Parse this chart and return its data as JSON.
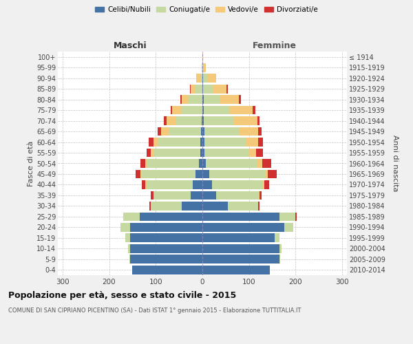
{
  "age_groups": [
    "0-4",
    "5-9",
    "10-14",
    "15-19",
    "20-24",
    "25-29",
    "30-34",
    "35-39",
    "40-44",
    "45-49",
    "50-54",
    "55-59",
    "60-64",
    "65-69",
    "70-74",
    "75-79",
    "80-84",
    "85-89",
    "90-94",
    "95-99",
    "100+"
  ],
  "birth_years": [
    "2010-2014",
    "2005-2009",
    "2000-2004",
    "1995-1999",
    "1990-1994",
    "1985-1989",
    "1980-1984",
    "1975-1979",
    "1970-1974",
    "1965-1969",
    "1960-1964",
    "1955-1959",
    "1950-1954",
    "1945-1949",
    "1940-1944",
    "1935-1939",
    "1930-1934",
    "1925-1929",
    "1920-1924",
    "1915-1919",
    "≤ 1914"
  ],
  "male_celibe": [
    150,
    155,
    155,
    155,
    155,
    135,
    45,
    25,
    20,
    15,
    8,
    5,
    5,
    3,
    2,
    0,
    0,
    0,
    0,
    0,
    0
  ],
  "male_coniugato": [
    0,
    2,
    5,
    10,
    20,
    35,
    65,
    80,
    100,
    115,
    110,
    100,
    90,
    70,
    55,
    45,
    30,
    15,
    5,
    0,
    0
  ],
  "male_vedovo": [
    0,
    0,
    0,
    0,
    0,
    0,
    0,
    0,
    2,
    3,
    5,
    5,
    10,
    15,
    20,
    20,
    15,
    10,
    8,
    2,
    0
  ],
  "male_divorziato": [
    0,
    0,
    0,
    0,
    0,
    0,
    3,
    5,
    8,
    10,
    10,
    10,
    10,
    8,
    5,
    3,
    2,
    1,
    0,
    0,
    0
  ],
  "female_celibe": [
    145,
    165,
    165,
    155,
    175,
    165,
    55,
    30,
    20,
    15,
    8,
    5,
    5,
    4,
    3,
    3,
    3,
    2,
    2,
    0,
    0
  ],
  "female_coniugato": [
    0,
    2,
    5,
    10,
    20,
    35,
    65,
    90,
    110,
    120,
    110,
    95,
    90,
    75,
    65,
    55,
    35,
    20,
    8,
    2,
    0
  ],
  "female_vedovo": [
    0,
    0,
    0,
    0,
    0,
    0,
    0,
    2,
    3,
    5,
    10,
    15,
    25,
    40,
    50,
    50,
    40,
    30,
    20,
    5,
    2
  ],
  "female_divorziato": [
    0,
    0,
    0,
    0,
    0,
    2,
    3,
    5,
    10,
    20,
    20,
    15,
    10,
    8,
    5,
    5,
    5,
    2,
    0,
    0,
    0
  ],
  "color_celibe": "#4472a4",
  "color_coniugato": "#c5d9a0",
  "color_vedovo": "#f5c97a",
  "color_divorziato": "#d03030",
  "title": "Popolazione per età, sesso e stato civile - 2015",
  "subtitle": "COMUNE DI SAN CIPRIANO PICENTINO (SA) - Dati ISTAT 1° gennaio 2015 - Elaborazione TUTTITALIA.IT",
  "label_maschi": "Maschi",
  "label_femmine": "Femmine",
  "ylabel_left": "Fasce di età",
  "ylabel_right": "Anni di nascita",
  "xlim": 310,
  "bg_color": "#f0f0f0",
  "plot_bg": "#ffffff",
  "grid_color": "#bbbbbb"
}
